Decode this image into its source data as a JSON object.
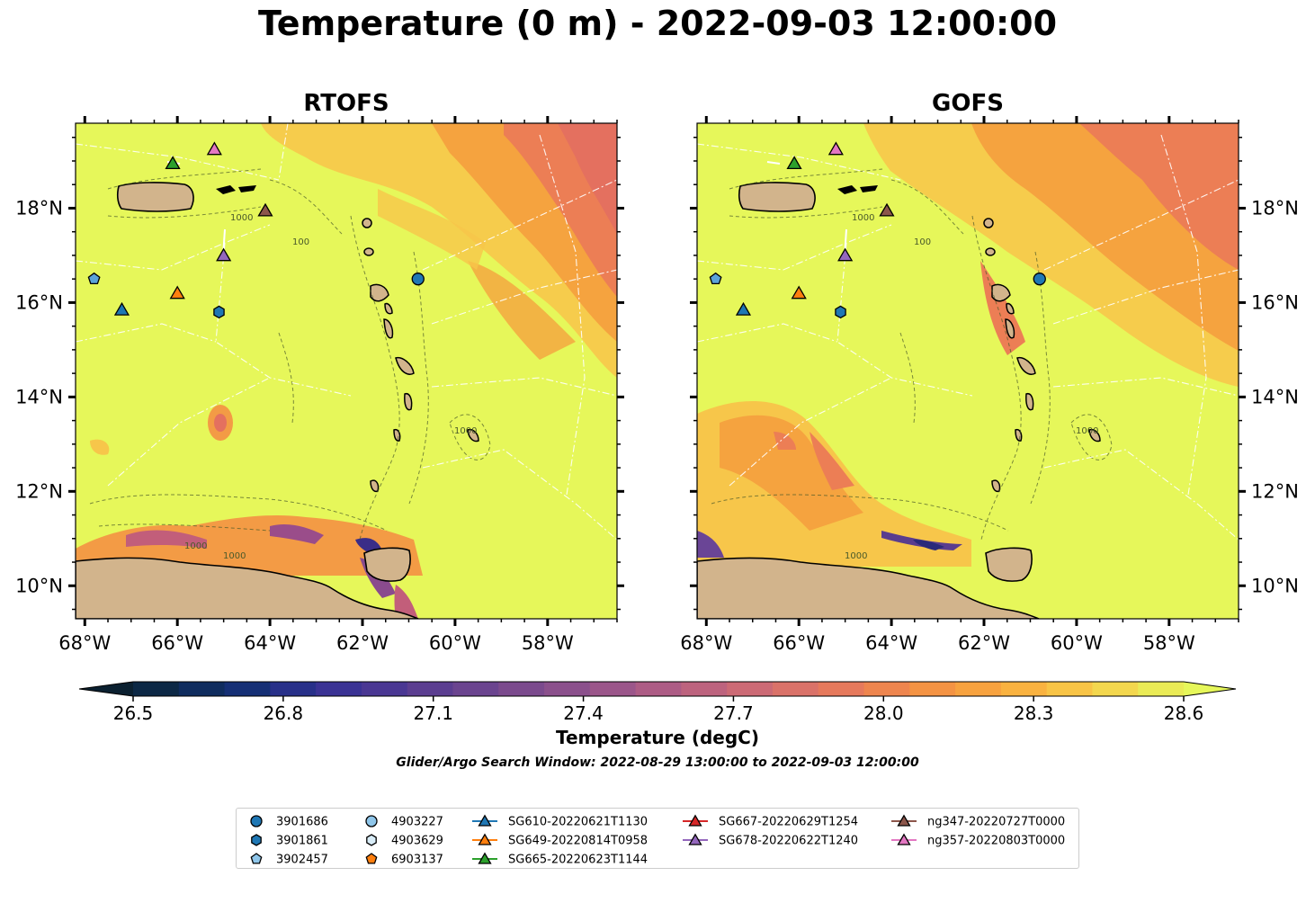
{
  "title": "Temperature (0 m) - 2022-09-03 12:00:00",
  "panels": [
    {
      "title": "RTOFS"
    },
    {
      "title": "GOFS"
    }
  ],
  "axes": {
    "lon_ticks": [
      "68°W",
      "66°W",
      "64°W",
      "62°W",
      "60°W",
      "58°W"
    ],
    "lat_ticks": [
      "18°N",
      "16°N",
      "14°N",
      "12°N",
      "10°N"
    ],
    "lon_range": [
      -68.2,
      -56.5
    ],
    "lat_range": [
      9.3,
      19.8
    ]
  },
  "contour_labels": [
    "100",
    "1000"
  ],
  "colorbar": {
    "label": "Temperature (degC)",
    "ticks": [
      "26.5",
      "26.8",
      "27.1",
      "27.4",
      "27.7",
      "28.0",
      "28.3",
      "28.6"
    ],
    "range": [
      26.5,
      28.6
    ],
    "extend": "both"
  },
  "subtitle": "Glider/Argo Search Window: 2022-08-29 13:00:00 to 2022-09-03 12:00:00",
  "colors": {
    "ocean_warm": "#e6f75a",
    "land": "#d2b48c",
    "coast": "#000000",
    "argo_blue": "#1f77b4",
    "argo_light": "#8fc6ea",
    "argo_orange": "#ff7f0e",
    "sg610": "#1f77b4",
    "sg649": "#ff7f0e",
    "sg665": "#2ca02c",
    "sg667": "#d62728",
    "sg678": "#9467bd",
    "ng347": "#8c564b",
    "ng357": "#e377c2"
  },
  "legend": {
    "argo": [
      {
        "label": "3901686",
        "marker": "circle",
        "color": "#1f77b4"
      },
      {
        "label": "3901861",
        "marker": "hexagon",
        "color": "#1f77b4"
      },
      {
        "label": "3902457",
        "marker": "pentagon",
        "color": "#8fc6ea"
      },
      {
        "label": "4903227",
        "marker": "circle",
        "color": "#8fc6ea"
      },
      {
        "label": "4903629",
        "marker": "hexagon",
        "color": "#d8ecf7"
      },
      {
        "label": "6903137",
        "marker": "pentagon",
        "color": "#ff7f0e"
      }
    ],
    "gliders": [
      {
        "label": "SG610-20220621T1130",
        "color": "#1f77b4"
      },
      {
        "label": "SG649-20220814T0958",
        "color": "#ff7f0e"
      },
      {
        "label": "SG665-20220623T1144",
        "color": "#2ca02c"
      },
      {
        "label": "SG667-20220629T1254",
        "color": "#d62728"
      },
      {
        "label": "SG678-20220622T1240",
        "color": "#9467bd"
      },
      {
        "label": "ng347-20220727T0000",
        "color": "#8c564b"
      },
      {
        "label": "ng357-20220803T0000",
        "color": "#e377c2"
      }
    ]
  },
  "markers": [
    {
      "id": "3901686",
      "type": "circle",
      "color": "#1f77b4",
      "lon": -60.8,
      "lat": 16.5
    },
    {
      "id": "3901861",
      "type": "hexagon",
      "color": "#1f77b4",
      "lon": -65.1,
      "lat": 15.8
    },
    {
      "id": "3902457",
      "type": "pentagon",
      "color": "#5ba3d9",
      "lon": -67.8,
      "lat": 16.5
    },
    {
      "id": "SG610-20220621T1130",
      "type": "triangle",
      "color": "#1f77b4",
      "lon": -67.2,
      "lat": 15.85
    },
    {
      "id": "SG649-20220814T0958",
      "type": "triangle",
      "color": "#ff7f0e",
      "lon": -66.0,
      "lat": 16.2
    },
    {
      "id": "SG665-20220623T1144",
      "type": "triangle",
      "color": "#2ca02c",
      "lon": -66.1,
      "lat": 18.95
    },
    {
      "id": "SG678-20220622T1240",
      "type": "triangle",
      "color": "#9467bd",
      "lon": -65.0,
      "lat": 17.0
    },
    {
      "id": "ng347-20220727T0000",
      "type": "triangle",
      "color": "#8c564b",
      "lon": -64.1,
      "lat": 17.95
    },
    {
      "id": "ng357-20220803T0000",
      "type": "triangle",
      "color": "#e377c2",
      "lon": -65.2,
      "lat": 19.25
    }
  ]
}
